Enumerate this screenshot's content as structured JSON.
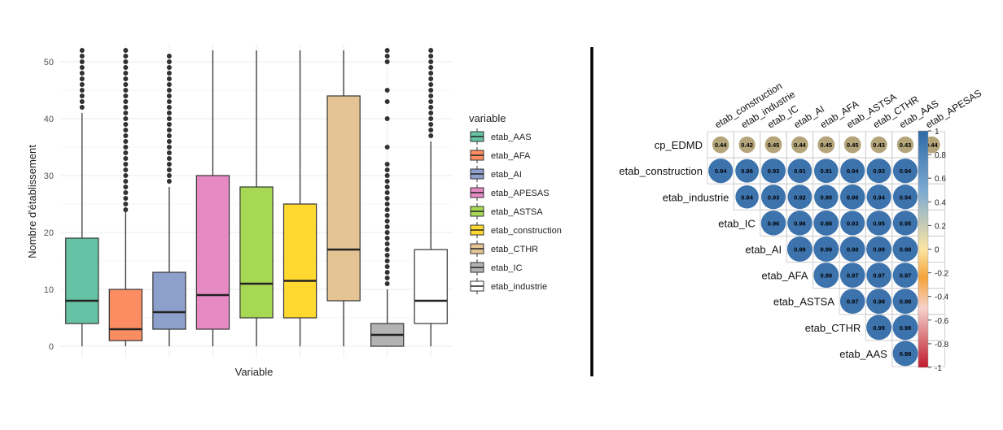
{
  "chart_data": [
    {
      "type": "box",
      "title": "",
      "xlabel": "Variable",
      "ylabel": "Nombre d'établissement",
      "ylim": [
        -2,
        53
      ],
      "yticks": [
        0,
        10,
        20,
        30,
        40,
        50
      ],
      "grid": true,
      "legend_title": "variable",
      "legend_position": "right",
      "series": [
        {
          "name": "etab_AAS",
          "color": "#66c2a5",
          "min": 0,
          "q1": 4,
          "median": 8,
          "q3": 19,
          "whisker_high": 41,
          "outliers": [
            42,
            43,
            44,
            45,
            46,
            47,
            48,
            49,
            50,
            51,
            52
          ]
        },
        {
          "name": "etab_AFA",
          "color": "#fc8d62",
          "min": 0,
          "q1": 1,
          "median": 3,
          "q3": 10,
          "whisker_high": 24,
          "outliers": [
            24,
            25,
            26,
            27,
            28,
            29,
            30,
            31,
            32,
            33,
            34,
            35,
            36,
            37,
            38,
            39,
            40,
            41,
            42,
            43,
            44,
            45,
            46,
            47,
            48,
            49,
            50,
            51,
            52
          ]
        },
        {
          "name": "etab_AI",
          "color": "#8da0cb",
          "min": 0,
          "q1": 3,
          "median": 6,
          "q3": 13,
          "whisker_high": 28,
          "outliers": [
            29,
            30,
            31,
            32,
            33,
            34,
            35,
            36,
            37,
            38,
            39,
            40,
            41,
            42,
            43,
            44,
            45,
            46,
            47,
            48,
            49,
            50,
            51
          ]
        },
        {
          "name": "etab_APESAS",
          "color": "#e78ac3",
          "min": 0,
          "q1": 3,
          "median": 9,
          "q3": 30,
          "whisker_high": 52,
          "outliers": []
        },
        {
          "name": "etab_ASTSA",
          "color": "#a6d854",
          "min": 0,
          "q1": 5,
          "median": 11,
          "q3": 28,
          "whisker_high": 52,
          "outliers": []
        },
        {
          "name": "etab_construction",
          "color": "#ffd92f",
          "min": 0,
          "q1": 5,
          "median": 11.5,
          "q3": 25,
          "whisker_high": 52,
          "outliers": []
        },
        {
          "name": "etab_CTHR",
          "color": "#e5c494",
          "min": 0,
          "q1": 8,
          "median": 17,
          "q3": 44,
          "whisker_high": 52,
          "outliers": []
        },
        {
          "name": "etab_IC",
          "color": "#b3b3b3",
          "min": 0,
          "q1": 0,
          "median": 2,
          "q3": 4,
          "whisker_high": 10,
          "outliers": [
            11,
            12,
            13,
            14,
            15,
            16,
            17,
            18,
            19,
            20,
            21,
            22,
            23,
            24,
            25,
            26,
            27,
            28,
            29,
            30,
            31,
            32,
            35,
            40,
            43,
            45,
            50,
            51,
            52
          ]
        },
        {
          "name": "etab_industrie",
          "color": "#ffffff",
          "min": 0,
          "q1": 4,
          "median": 8,
          "q3": 17,
          "whisker_high": 36,
          "outliers": [
            37,
            38,
            39,
            40,
            41,
            42,
            43,
            44,
            45,
            46,
            47,
            48,
            49,
            50,
            51,
            52
          ]
        }
      ]
    },
    {
      "type": "heatmap",
      "title": "",
      "columns": [
        "etab_construction",
        "etab_industrie",
        "etab_IC",
        "etab_AI",
        "etab_AFA",
        "etab_ASTSA",
        "etab_CTHR",
        "etab_AAS",
        "etab_APESAS"
      ],
      "rows": [
        "cp_EDMD",
        "etab_construction",
        "etab_industrie",
        "etab_IC",
        "etab_AI",
        "etab_AFA",
        "etab_ASTSA",
        "etab_CTHR",
        "etab_AAS"
      ],
      "values": [
        [
          0.44,
          0.42,
          0.45,
          0.44,
          0.45,
          0.45,
          0.43,
          0.43,
          0.44
        ],
        [
          0.94,
          0.86,
          0.93,
          0.91,
          0.91,
          0.94,
          0.93,
          0.94,
          null
        ],
        [
          0.84,
          0.93,
          0.92,
          0.9,
          0.96,
          0.94,
          0.94,
          null,
          null
        ],
        [
          0.96,
          0.96,
          0.98,
          0.93,
          0.95,
          0.95,
          null,
          null,
          null
        ],
        [
          0.99,
          0.99,
          0.98,
          0.99,
          0.98,
          null,
          null,
          null,
          null
        ],
        [
          0.99,
          0.97,
          0.97,
          0.97,
          null,
          null,
          null,
          null,
          null
        ],
        [
          0.97,
          0.98,
          0.98,
          null,
          null,
          null,
          null,
          null,
          null
        ],
        [
          0.99,
          0.99,
          null,
          null,
          null,
          null,
          null,
          null,
          null
        ],
        [
          0.99,
          null,
          null,
          null,
          null,
          null,
          null,
          null,
          null
        ]
      ],
      "colorbar": {
        "ticks": [
          1,
          0.8,
          0.6,
          0.4,
          0.2,
          0,
          -0.2,
          -0.4,
          -0.6,
          -0.8,
          -1
        ],
        "tick_labels": [
          "1",
          "0.8",
          "0.6",
          "0.4",
          "0.2",
          "0",
          "-0.2",
          "-0.4",
          "-0.6",
          "-0.8",
          "-1"
        ]
      }
    }
  ]
}
